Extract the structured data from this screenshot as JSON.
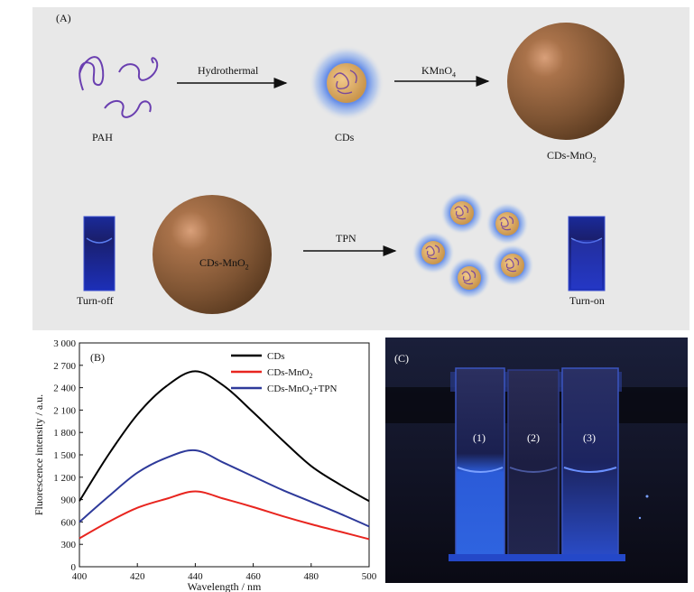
{
  "panel_a": {
    "label": "(A)",
    "pah": "PAH",
    "step1": "Hydrothermal",
    "cds": "CDs",
    "step2": "KMnO",
    "step2_sub": "4",
    "cds_mno2_top": "CDs-MnO",
    "cds_mno2_top_sub": "2",
    "turn_off": "Turn-off",
    "cds_mno2_mid": "CDs-MnO",
    "cds_mno2_mid_sub": "2",
    "step3": "TPN",
    "turn_on": "Turn-on"
  },
  "panel_c": {
    "label": "(C)",
    "cuvettes": [
      "(1)",
      "(2)",
      "(3)"
    ]
  },
  "chart_data": {
    "type": "line",
    "panel_label": "(B)",
    "xlabel": "Wavelength / nm",
    "ylabel": "Fluorescence intensity / a.u.",
    "xlim": [
      400,
      500
    ],
    "ylim": [
      0,
      3000
    ],
    "xticks": [
      "400",
      "420",
      "440",
      "460",
      "480",
      "500"
    ],
    "yticks": [
      "0",
      "300",
      "600",
      "900",
      "1 200",
      "1 500",
      "1 800",
      "2 100",
      "2 400",
      "2 700",
      "3 000"
    ],
    "grid": false,
    "legend_position": "top-right",
    "x": [
      400,
      410,
      420,
      430,
      440,
      450,
      460,
      470,
      480,
      490,
      500
    ],
    "series": [
      {
        "name": "CDs",
        "color": "#000000",
        "values": [
          880,
          1500,
          2040,
          2420,
          2620,
          2420,
          2070,
          1700,
          1350,
          1100,
          880
        ]
      },
      {
        "name": "CDs-MnO",
        "name_sub": "2",
        "color": "#e8251f",
        "values": [
          380,
          600,
          790,
          910,
          1010,
          910,
          800,
          680,
          570,
          470,
          370
        ]
      },
      {
        "name": "CDs-MnO",
        "name_sub": "2",
        "name_suffix": "+TPN",
        "color": "#2e3a9a",
        "values": [
          600,
          940,
          1260,
          1460,
          1560,
          1390,
          1210,
          1030,
          870,
          710,
          540
        ]
      }
    ]
  }
}
